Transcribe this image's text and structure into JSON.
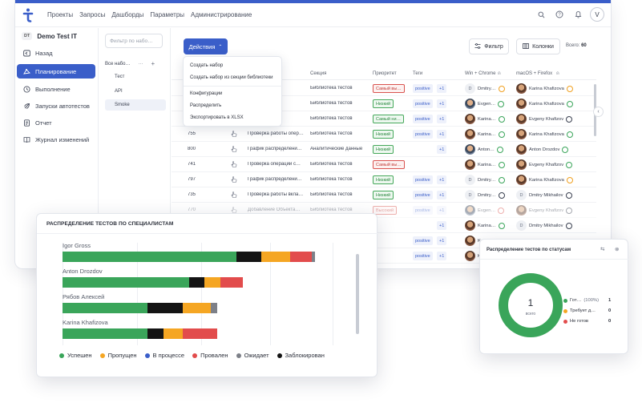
{
  "nav": [
    "Проекты",
    "Запросы",
    "Дашборды",
    "Параметры",
    "Администрирование"
  ],
  "user_initial": "V",
  "project": {
    "badge": "DT",
    "name": "Demo Test IT"
  },
  "sidebar": [
    {
      "label": "Назад",
      "icon": "back-icon"
    },
    {
      "label": "Планирование",
      "icon": "planning-icon",
      "active": true
    },
    {
      "label": "Выполнение",
      "icon": "execution-icon"
    },
    {
      "label": "Запуски автотестов",
      "icon": "rocket-icon"
    },
    {
      "label": "Отчет",
      "icon": "report-icon"
    },
    {
      "label": "Журнал изменений",
      "icon": "journal-icon"
    }
  ],
  "tree": {
    "filter_placeholder": "Фильтр по набо…",
    "root": "Все набо…",
    "items": [
      "Тест",
      "API",
      "Smoke"
    ]
  },
  "toolbar": {
    "actions": "Действия",
    "filter": "Фильтр",
    "columns": "Колонки",
    "total_label": "Всего:",
    "total_value": "60"
  },
  "dropdown": [
    "Создать набор",
    "Создать набор из секции библиотеки",
    "Конфигурации",
    "Распределить",
    "Экспортировать в XLSX"
  ],
  "table": {
    "headers": {
      "section": "Секция",
      "priority": "Приоритет",
      "tags": "Теги",
      "win": "Win + Chrome",
      "mac": "macOS + Firefox"
    },
    "rows": [
      {
        "id": "",
        "name": "…ения",
        "section": "Библиотека тестов",
        "priority": "Самый вы…",
        "prio": "high",
        "tag1": "positive",
        "tag2": "+1",
        "u1": "Dmitry…",
        "u1av": "d",
        "u1st": "warn",
        "u2": "Karina Khafizova",
        "u2st": "warn"
      },
      {
        "id": "",
        "name": "…пред…",
        "section": "Библиотека тестов",
        "priority": "Низкий",
        "prio": "low",
        "tag1": "positive",
        "tag2": "+1",
        "u1": "Evgen…",
        "u1av": "p2",
        "u1st": "ok",
        "u2": "Karina Khafizova",
        "u2st": "ok"
      },
      {
        "id": "",
        "name": "…",
        "section": "Библиотека тестов",
        "priority": "Самый ни…",
        "prio": "low",
        "tag1": "positive",
        "tag2": "+1",
        "u1": "Karina…",
        "u1av": "p",
        "u1st": "ok",
        "u2": "Evgeny Khafizov",
        "u2st": "dash"
      },
      {
        "id": "755",
        "name": "Проверка работы опер…",
        "section": "Библиотека тестов",
        "priority": "Низкий",
        "prio": "low",
        "tag1": "positive",
        "tag2": "+1",
        "u1": "Karina…",
        "u1av": "p",
        "u1st": "ok",
        "u2": "Karina Khafizova",
        "u2st": "ok"
      },
      {
        "id": "800",
        "name": "График распределени…",
        "section": "Аналитические данные",
        "priority": "Низкий",
        "prio": "low",
        "tag1": "",
        "tag2": "+1",
        "u1": "Anton…",
        "u1av": "p2",
        "u1st": "ok",
        "u2": "Anton Drozdov",
        "u2st": "ok"
      },
      {
        "id": "741",
        "name": "Проверка операций с…",
        "section": "Библиотека тестов",
        "priority": "Самый вы…",
        "prio": "high",
        "tag1": "",
        "tag2": "",
        "u1": "Karina…",
        "u1av": "p",
        "u1st": "ok",
        "u2": "Evgeny Khafizov",
        "u2st": "ok"
      },
      {
        "id": "797",
        "name": "График распределени…",
        "section": "Библиотека тестов",
        "priority": "Низкий",
        "prio": "low",
        "tag1": "positive",
        "tag2": "+1",
        "u1": "Dmitry…",
        "u1av": "d",
        "u1st": "ok",
        "u2": "Karina Khafizova",
        "u2st": "warn"
      },
      {
        "id": "735",
        "name": "Проверка работы вкла…",
        "section": "Библиотека тестов",
        "priority": "Низкий",
        "prio": "low",
        "tag1": "positive",
        "tag2": "+1",
        "u1": "Dmitry…",
        "u1av": "d",
        "u1st": "dash",
        "u2": "Dmitry Mikhailov",
        "u2st": "dash"
      },
      {
        "id": "770",
        "name": "Добавление Объекта…",
        "section": "Библиотека тестов",
        "priority": "Высокий",
        "prio": "high",
        "tag1": "positive",
        "tag2": "+1",
        "u1": "Evgen…",
        "u1av": "p2",
        "u1st": "bad",
        "u2": "Evgeny Khafizov",
        "u2st": "dash"
      },
      {
        "id": "",
        "name": "",
        "section": "",
        "priority": "",
        "prio": "",
        "tag1": "",
        "tag2": "+1",
        "u1": "Karina…",
        "u1av": "p",
        "u1st": "ok",
        "u2": "Dmitry Mikhailov",
        "u2st": "dash"
      },
      {
        "id": "",
        "name": "",
        "section": "",
        "priority": "",
        "prio": "",
        "tag1": "positive",
        "tag2": "+1",
        "u1": "Karin…",
        "u1av": "p",
        "u1st": "",
        "u2": "",
        "u2st": ""
      },
      {
        "id": "",
        "name": "",
        "section": "",
        "priority": "",
        "prio": "",
        "tag1": "positive",
        "tag2": "+1",
        "u1": "Karin…",
        "u1av": "p",
        "u1st": "",
        "u2": "",
        "u2st": ""
      }
    ]
  },
  "chart_data": [
    {
      "type": "bar",
      "title": "РАСПРЕДЕЛЕНИЕ ТЕСТОВ ПО СПЕЦИАЛИСТАМ",
      "orientation": "horizontal-stacked",
      "categories": [
        "Igor Gross",
        "Anton Drozdov",
        "Рябов Алексей",
        "Karina Khafizova"
      ],
      "series": [
        {
          "name": "Успешен",
          "color": "#3aa55a",
          "values": [
            55,
            40,
            27,
            27
          ]
        },
        {
          "name": "Пропущен",
          "color": "#f5a623",
          "values": [
            9,
            5,
            9,
            6
          ]
        },
        {
          "name": "В процессе",
          "color": "#3a5ec9",
          "values": [
            0,
            0,
            0,
            0
          ]
        },
        {
          "name": "Провален",
          "color": "#e24c4c",
          "values": [
            7,
            7,
            0,
            11
          ]
        },
        {
          "name": "Ожидает",
          "color": "#7d8088",
          "values": [
            1,
            0,
            2,
            0
          ]
        },
        {
          "name": "Заблокирован",
          "color": "#141414",
          "values": [
            8,
            5,
            11,
            5
          ]
        }
      ],
      "legend_position": "bottom",
      "grid": true
    },
    {
      "type": "pie",
      "title": "Распределение тестов по статусам",
      "center_value": "1",
      "center_label": "всего",
      "slices": [
        {
          "label": "Гот…",
          "pct": "(100%)",
          "value": 1,
          "color": "#3aa55a"
        },
        {
          "label": "Требует д…",
          "pct": "",
          "value": 0,
          "color": "#f5a623"
        },
        {
          "label": "Не готов",
          "pct": "",
          "value": 0,
          "color": "#e24c4c"
        }
      ]
    }
  ]
}
